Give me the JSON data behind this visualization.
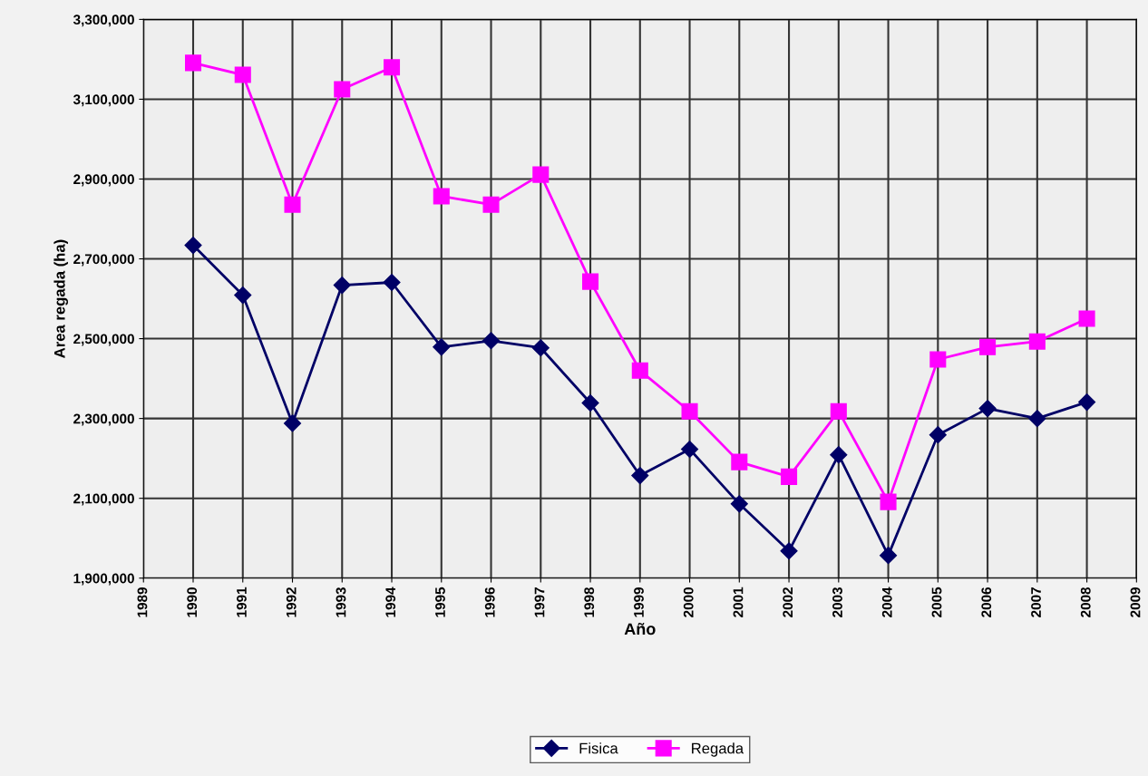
{
  "chart_data": {
    "type": "line",
    "xlabel": "Año",
    "ylabel": "Area regada (ha)",
    "x": [
      1990,
      1991,
      1992,
      1993,
      1994,
      1995,
      1996,
      1997,
      1998,
      1999,
      2000,
      2001,
      2002,
      2003,
      2004,
      2005,
      2006,
      2007,
      2008
    ],
    "series": [
      {
        "name": "Fisica",
        "color": "#000066",
        "marker": "diamond",
        "values": [
          2734000,
          2609000,
          2288000,
          2634000,
          2641000,
          2479000,
          2495000,
          2477000,
          2339000,
          2157000,
          2223000,
          2086000,
          1968000,
          2209000,
          1957000,
          2259000,
          2325000,
          2300000,
          2341000
        ]
      },
      {
        "name": "Regada",
        "color": "#ff00ff",
        "marker": "square",
        "values": [
          3191000,
          3161000,
          2836000,
          3125000,
          3180000,
          2857000,
          2836000,
          2911000,
          2643000,
          2420000,
          2318000,
          2191000,
          2154000,
          2318000,
          2091000,
          2448000,
          2479000,
          2493000,
          2550000
        ]
      }
    ],
    "xlim": [
      1989,
      2009
    ],
    "xticks": [
      1989,
      1990,
      1991,
      1992,
      1993,
      1994,
      1995,
      1996,
      1997,
      1998,
      1999,
      2000,
      2001,
      2002,
      2003,
      2004,
      2005,
      2006,
      2007,
      2008,
      2009
    ],
    "ylim": [
      1900000,
      3300000
    ],
    "yticks": [
      {
        "value": 1900000,
        "label": "1,900,000"
      },
      {
        "value": 2100000,
        "label": "2,100,000"
      },
      {
        "value": 2300000,
        "label": "2,300,000"
      },
      {
        "value": 2500000,
        "label": "2,500,000"
      },
      {
        "value": 2700000,
        "label": "2,700,000"
      },
      {
        "value": 2900000,
        "label": "2,900,000"
      },
      {
        "value": 3100000,
        "label": "3,100,000"
      },
      {
        "value": 3300000,
        "label": "3,300,000"
      }
    ],
    "grid": true,
    "legend": "bottom",
    "line_style": "solid"
  }
}
